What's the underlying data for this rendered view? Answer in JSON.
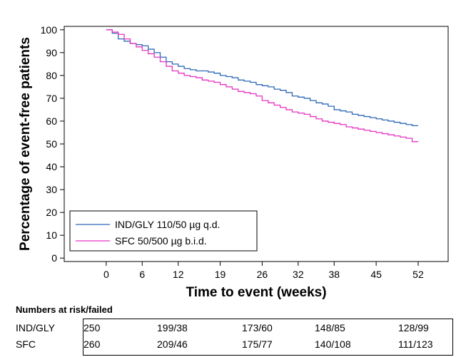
{
  "chart_data": {
    "type": "line",
    "ylabel": "Percentage of event-free patients",
    "xlabel": "Time to event (weeks)",
    "xlim": [
      -7,
      57
    ],
    "ylim": [
      -1.5,
      101.5
    ],
    "x_ticks": [
      0,
      6,
      12,
      19,
      26,
      32,
      38,
      45,
      52
    ],
    "y_ticks": [
      0,
      10,
      20,
      30,
      40,
      50,
      60,
      70,
      80,
      90,
      100
    ],
    "legend_position": "bottom-left",
    "series": [
      {
        "name": "IND/GLY 110/50 µg q.d.",
        "color": "#2e68b6",
        "x": [
          0,
          1,
          2,
          3,
          4,
          5,
          6,
          7,
          8,
          9,
          10,
          11,
          12,
          13,
          14,
          15,
          16,
          17,
          18,
          19,
          20,
          21,
          22,
          23,
          24,
          25,
          26,
          27,
          28,
          29,
          30,
          31,
          32,
          33,
          34,
          35,
          36,
          37,
          38,
          39,
          40,
          41,
          42,
          43,
          44,
          45,
          46,
          47,
          48,
          49,
          50,
          51,
          52
        ],
        "y": [
          100,
          98.5,
          96,
          95,
          94,
          93.5,
          93,
          91.5,
          90,
          88,
          86,
          85,
          84,
          83,
          82.5,
          82,
          82,
          81.5,
          81,
          80,
          79.5,
          79,
          78,
          77.5,
          77,
          76,
          75.5,
          75,
          74,
          73.5,
          72.5,
          71,
          70.5,
          70,
          69,
          68,
          67.5,
          66.5,
          65,
          64.5,
          64,
          63,
          62.5,
          62,
          61.5,
          61,
          60.5,
          60,
          59.5,
          59,
          58.5,
          58,
          58
        ]
      },
      {
        "name": "SFC 50/500 µg b.i.d.",
        "color": "#e632c3",
        "x": [
          0,
          1,
          2,
          3,
          4,
          5,
          6,
          7,
          8,
          9,
          10,
          11,
          12,
          13,
          14,
          15,
          16,
          17,
          18,
          19,
          20,
          21,
          22,
          23,
          24,
          25,
          26,
          27,
          28,
          29,
          30,
          31,
          32,
          33,
          34,
          35,
          36,
          37,
          38,
          39,
          40,
          41,
          42,
          43,
          44,
          45,
          46,
          47,
          48,
          49,
          50,
          51,
          52
        ],
        "y": [
          100,
          99,
          98,
          96,
          94,
          92.5,
          91,
          89.5,
          88,
          86,
          84,
          82,
          81,
          80,
          79.5,
          79,
          78,
          77.5,
          77,
          76,
          75,
          74,
          73,
          72.5,
          72,
          71,
          69,
          68,
          67,
          66,
          65,
          64,
          63.5,
          63,
          62,
          61,
          60,
          59.5,
          59,
          58.5,
          57.5,
          57,
          56.5,
          56,
          55.5,
          55,
          54.5,
          54,
          53.5,
          53,
          52.5,
          51,
          51
        ]
      }
    ]
  },
  "risk_table": {
    "title": "Numbers at risk/failed",
    "rows": [
      {
        "name": "IND/GLY",
        "values": [
          "250",
          "199/38",
          "173/60",
          "148/85",
          "128/99"
        ]
      },
      {
        "name": "SFC",
        "values": [
          "260",
          "209/46",
          "175/77",
          "140/108",
          "111/123"
        ]
      }
    ]
  }
}
